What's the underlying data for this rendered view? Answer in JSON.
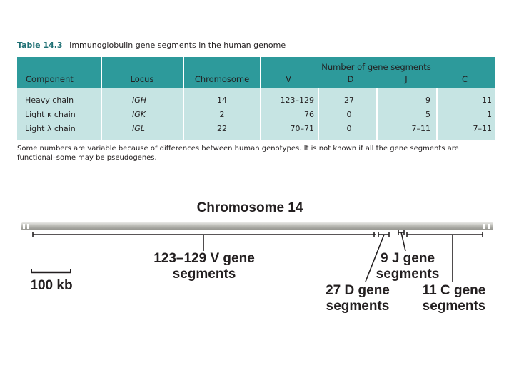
{
  "table": {
    "caption_number": "Table 14.3",
    "caption_title": "Immunoglobulin gene segments in the human genome",
    "group_header": "Number of gene segments",
    "columns": [
      "Component",
      "Locus",
      "Chromosome",
      "V",
      "D",
      "J",
      "C"
    ],
    "rows": [
      [
        "Heavy chain",
        "IGH",
        "14",
        "123–129",
        "27",
        "9",
        "11"
      ],
      [
        "Light κ chain",
        "IGK",
        "2",
        "76",
        "0",
        "5",
        "1"
      ],
      [
        "Light λ chain",
        "IGL",
        "22",
        "70–71",
        "0",
        "7–11",
        "7–11"
      ]
    ],
    "footnote": "Some numbers are variable because of differences between human genotypes. It is not known if all the gene segments are functional–some may be pseudogenes."
  },
  "diagram": {
    "title": "Chromosome 14",
    "v_label": [
      "123–129 V gene",
      "segments"
    ],
    "j_label": [
      "9 J gene",
      "segments"
    ],
    "d_label": [
      "27 D gene",
      "segments"
    ],
    "c_label": [
      "11 C gene",
      "segments"
    ],
    "scale_label": "100 kb"
  },
  "colors": {
    "table_header": "#2d9a9b",
    "table_body": "#c6e4e3",
    "chromosome": "#b9b9b3"
  }
}
